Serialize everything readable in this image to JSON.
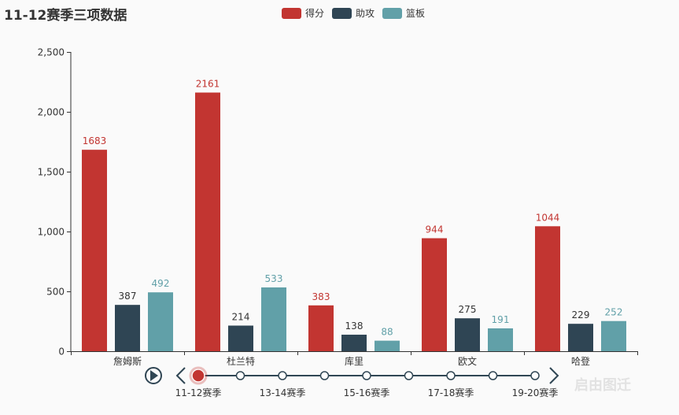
{
  "chart_data": {
    "type": "bar",
    "title": "11-12赛季三项数据",
    "categories": [
      "詹姆斯",
      "杜兰特",
      "库里",
      "欧文",
      "哈登"
    ],
    "series": [
      {
        "name": "得分",
        "color": "#c23531",
        "values": [
          1683,
          2161,
          383,
          944,
          1044
        ]
      },
      {
        "name": "助攻",
        "color": "#2f4554",
        "values": [
          387,
          214,
          138,
          275,
          229
        ]
      },
      {
        "name": "篮板",
        "color": "#61a0a8",
        "values": [
          492,
          533,
          88,
          191,
          252
        ]
      }
    ],
    "ylim": [
      0,
      2500
    ],
    "yticks": [
      0,
      500,
      1000,
      1500,
      2000,
      2500
    ],
    "ytick_labels": [
      "0",
      "500",
      "1,000",
      "1,500",
      "2,000",
      "2,500"
    ],
    "legend_position": "top-center"
  },
  "timeline": {
    "labels": [
      "11-12赛季",
      "13-14赛季",
      "15-16赛季",
      "17-18赛季",
      "19-20赛季"
    ],
    "point_count": 9,
    "current_index": 0
  },
  "watermark": "启由图迁"
}
